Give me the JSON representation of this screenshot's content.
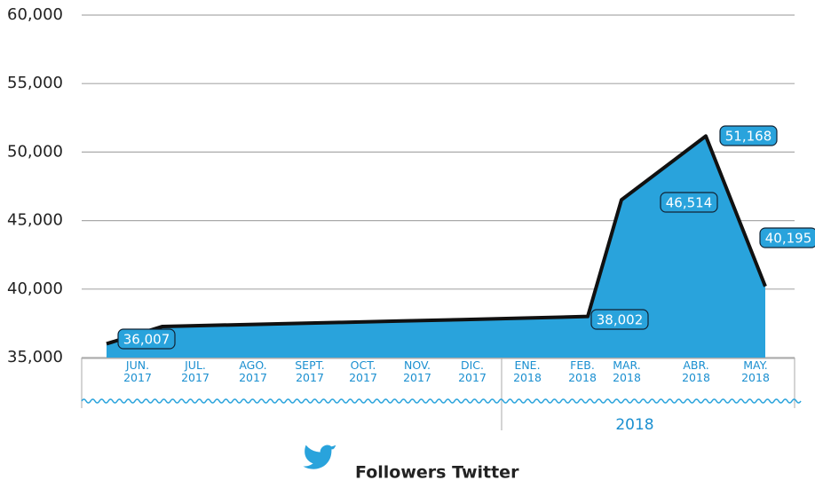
{
  "chart_data": {
    "type": "area",
    "title": "Followers Twitter",
    "categories": [
      "JUN. 2017",
      "JUL. 2017",
      "AGO. 2017",
      "SEPT. 2017",
      "OCT. 2017",
      "NOV. 2017",
      "DIC. 2017",
      "ENE. 2018",
      "FEB. 2018",
      "MAR. 2018",
      "ABR. 2018",
      "MAY. 2018"
    ],
    "group_label": "2018",
    "values": [
      36007,
      37270,
      37370,
      37470,
      37570,
      37670,
      37770,
      37880,
      38002,
      46514,
      51168,
      40195
    ],
    "value_labels": [
      "36,007",
      null,
      null,
      null,
      null,
      null,
      null,
      null,
      "38,002",
      "46,514",
      "51,168",
      "40,195"
    ],
    "color": "#29a3dc",
    "line_color": "#111111",
    "ylim": [
      35000,
      60000
    ],
    "yticks": [
      {
        "value": 35000,
        "label": "35,000"
      },
      {
        "value": 40000,
        "label": "40,000"
      },
      {
        "value": 45000,
        "label": "45,000"
      },
      {
        "value": 50000,
        "label": "50,000"
      },
      {
        "value": 55000,
        "label": "55,000"
      },
      {
        "value": 60000,
        "label": "60,000"
      }
    ],
    "grid": true
  }
}
